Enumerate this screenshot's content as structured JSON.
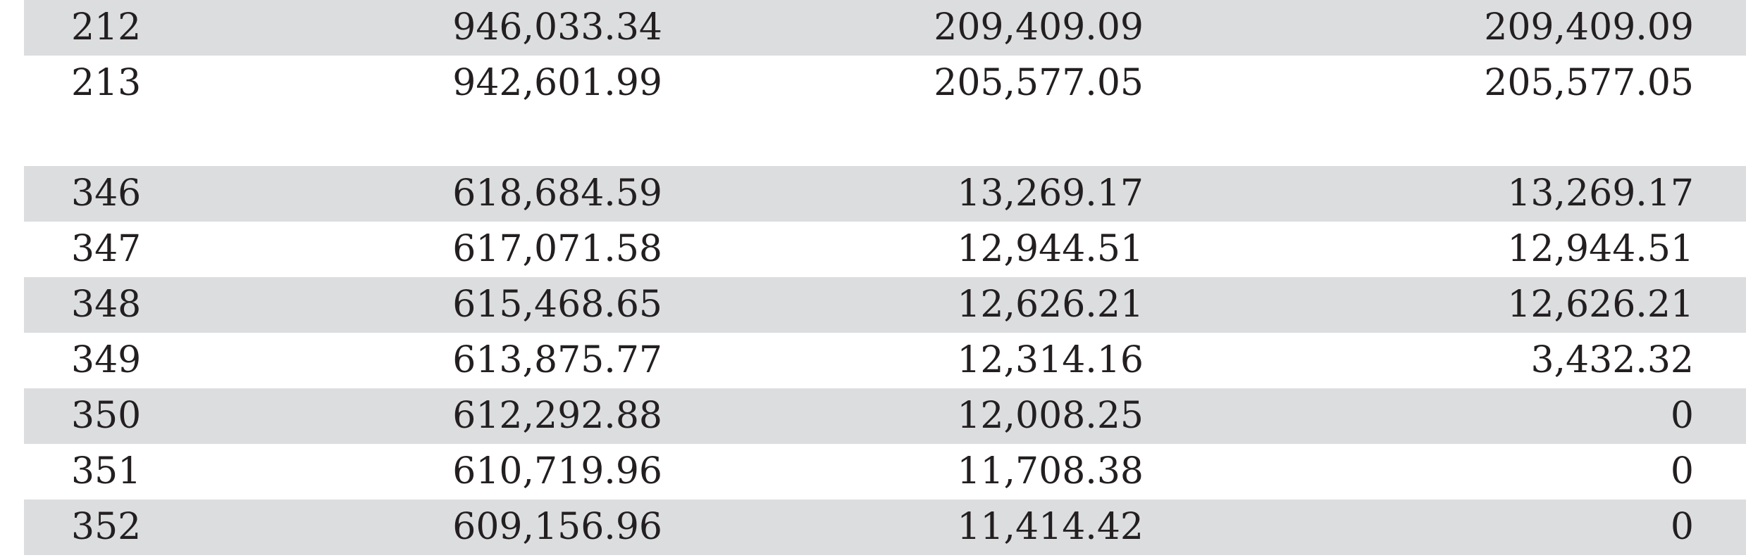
{
  "table": {
    "rows": [
      {
        "cells": [
          "212",
          "946,033.34",
          "209,409.09",
          "209,409.09"
        ],
        "shaded": true
      },
      {
        "cells": [
          "213",
          "942,601.99",
          "205,577.05",
          "205,577.05"
        ],
        "shaded": false
      },
      {
        "cells": [
          "346",
          "618,684.59",
          "13,269.17",
          "13,269.17"
        ],
        "shaded": true
      },
      {
        "cells": [
          "347",
          "617,071.58",
          "12,944.51",
          "12,944.51"
        ],
        "shaded": false
      },
      {
        "cells": [
          "348",
          "615,468.65",
          "12,626.21",
          "12,626.21"
        ],
        "shaded": true
      },
      {
        "cells": [
          "349",
          "613,875.77",
          "12,314.16",
          "3,432.32"
        ],
        "shaded": false
      },
      {
        "cells": [
          "350",
          "612,292.88",
          "12,008.25",
          "0"
        ],
        "shaded": true
      },
      {
        "cells": [
          "351",
          "610,719.96",
          "11,708.38",
          "0"
        ],
        "shaded": false
      },
      {
        "cells": [
          "352",
          "609,156.96",
          "11,414.42",
          "0"
        ],
        "shaded": true
      }
    ]
  }
}
